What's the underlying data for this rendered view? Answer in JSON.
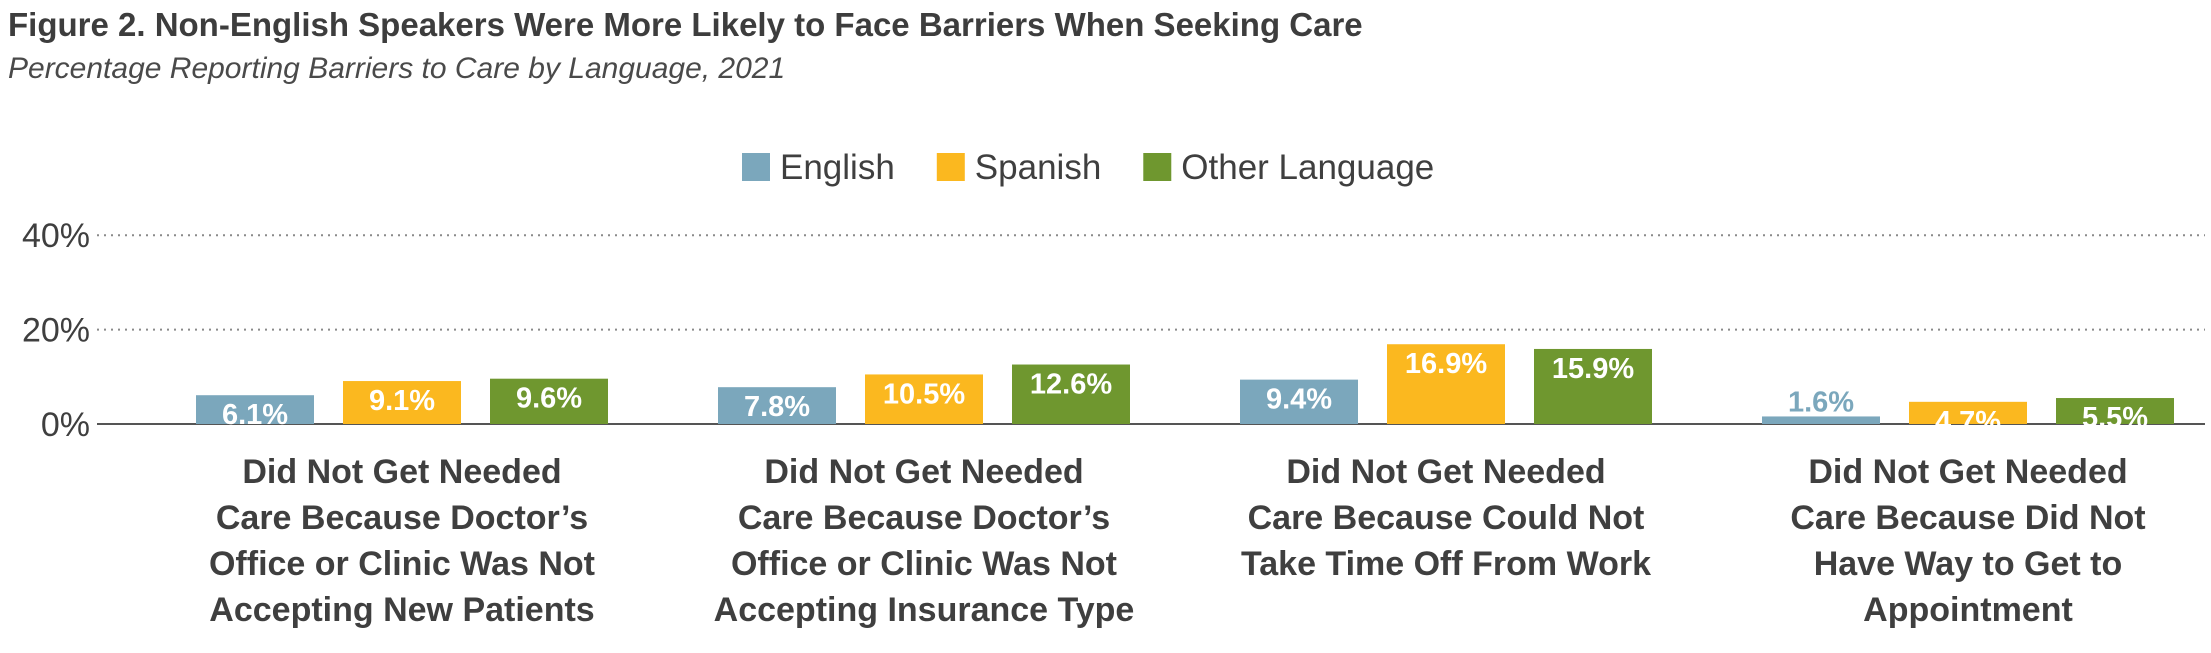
{
  "title": "Figure 2. Non-English Speakers Were More Likely to Face Barriers When Seeking Care",
  "subtitle": "Percentage Reporting Barriers to Care by Language, 2021",
  "chart_data": {
    "type": "bar",
    "categories": [
      [
        "Did Not Get Needed",
        "Care Because Doctor’s",
        "Office or Clinic Was Not",
        "Accepting New Patients"
      ],
      [
        "Did Not Get Needed",
        "Care Because Doctor’s",
        "Office or Clinic Was Not",
        "Accepting Insurance Type"
      ],
      [
        "Did Not Get Needed",
        "Care Because Could Not",
        "Take Time Off From Work"
      ],
      [
        "Did Not Get Needed",
        "Care Because Did Not",
        "Have Way to Get to",
        "Appointment"
      ]
    ],
    "series": [
      {
        "name": "English",
        "color": "#7ba7bc",
        "values": [
          6.1,
          7.8,
          9.4,
          1.6
        ],
        "labels": [
          "6.1%",
          "7.8%",
          "9.4%",
          "1.6%"
        ]
      },
      {
        "name": "Spanish",
        "color": "#fbb81f",
        "values": [
          9.1,
          10.5,
          16.9,
          4.7
        ],
        "labels": [
          "9.1%",
          "10.5%",
          "16.9%",
          "4.7%"
        ]
      },
      {
        "name": "Other Language",
        "color": "#6f972f",
        "values": [
          9.6,
          12.6,
          15.9,
          5.5
        ],
        "labels": [
          "9.6%",
          "12.6%",
          "15.9%",
          "5.5%"
        ]
      }
    ],
    "yticks": [
      0,
      20,
      40
    ],
    "ytick_labels": [
      "0%",
      "20%",
      "40%"
    ],
    "ylim": [
      0,
      40
    ],
    "grid": "dotted horizontal at 20% and 40%",
    "legend_position": "top-center",
    "small_value_label_color": "#7ba7bc"
  }
}
